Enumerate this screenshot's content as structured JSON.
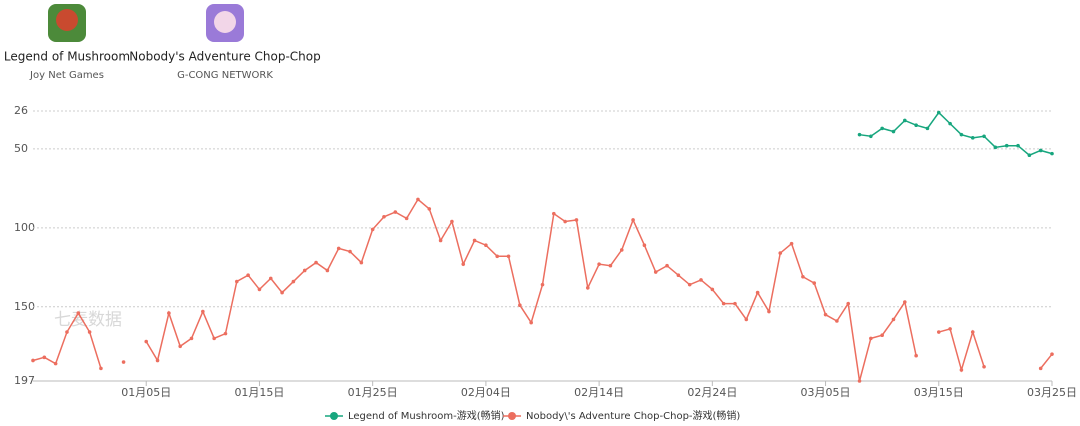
{
  "apps": [
    {
      "name": "Legend of Mushroom",
      "publisher": "Joy Net Games"
    },
    {
      "name": "Nobody's Adventure Chop-Chop",
      "publisher": "G-CONG NETWORK"
    }
  ],
  "chart_data": {
    "type": "line",
    "watermark": "七麦数据",
    "y_inverted": true,
    "ylim": [
      26,
      197
    ],
    "yticks": [
      26,
      50,
      100,
      150,
      197
    ],
    "grid": true,
    "categories": [
      null,
      null,
      null,
      null,
      null,
      null,
      null,
      null,
      null,
      null,
      "01月05日",
      null,
      null,
      null,
      null,
      null,
      null,
      null,
      null,
      null,
      "01月15日",
      null,
      null,
      null,
      null,
      null,
      null,
      null,
      null,
      null,
      "01月25日",
      null,
      null,
      null,
      null,
      null,
      null,
      null,
      null,
      null,
      "02月04日",
      null,
      null,
      null,
      null,
      null,
      null,
      null,
      null,
      null,
      "02月14日",
      null,
      null,
      null,
      null,
      null,
      null,
      null,
      null,
      null,
      "02月24日",
      null,
      null,
      null,
      null,
      null,
      null,
      null,
      null,
      null,
      "03月05日",
      null,
      null,
      null,
      null,
      null,
      null,
      null,
      null,
      null,
      "03月15日",
      null,
      null,
      null,
      null,
      null,
      null,
      null,
      null,
      null,
      "03月25日"
    ],
    "series": [
      {
        "name": "Legend of Mushroom-游戏(畅销)",
        "color": "#17a67e",
        "values": [
          null,
          null,
          null,
          null,
          null,
          null,
          null,
          null,
          null,
          null,
          null,
          null,
          null,
          null,
          null,
          null,
          null,
          null,
          null,
          null,
          null,
          null,
          null,
          null,
          null,
          null,
          null,
          null,
          null,
          null,
          null,
          null,
          null,
          null,
          null,
          null,
          null,
          null,
          null,
          null,
          null,
          null,
          null,
          null,
          null,
          null,
          null,
          null,
          null,
          null,
          null,
          null,
          null,
          null,
          null,
          null,
          null,
          null,
          null,
          null,
          null,
          null,
          null,
          null,
          null,
          null,
          null,
          null,
          null,
          null,
          null,
          null,
          null,
          41,
          42,
          37,
          39,
          32,
          35,
          37,
          27,
          34,
          41,
          43,
          42,
          49,
          48,
          48,
          54,
          51,
          53
        ]
      },
      {
        "name": "Nobody\\'s Adventure Chop-Chop-游戏(畅销)",
        "color": "#ec6e5f",
        "values": [
          184,
          182,
          186,
          166,
          154,
          166,
          189,
          null,
          185,
          null,
          172,
          184,
          154,
          175,
          170,
          153,
          170,
          167,
          134,
          130,
          139,
          132,
          141,
          134,
          127,
          122,
          127,
          113,
          115,
          122,
          101,
          93,
          90,
          94,
          82,
          88,
          108,
          96,
          123,
          108,
          111,
          118,
          118,
          149,
          160,
          136,
          91,
          96,
          95,
          138,
          123,
          124,
          114,
          95,
          111,
          128,
          124,
          130,
          136,
          133,
          139,
          148,
          148,
          158,
          141,
          153,
          116,
          110,
          131,
          135,
          155,
          159,
          148,
          197,
          170,
          168,
          158,
          147,
          181,
          null,
          166,
          164,
          190,
          166,
          188,
          null,
          null,
          null,
          null,
          189,
          180
        ]
      }
    ]
  }
}
